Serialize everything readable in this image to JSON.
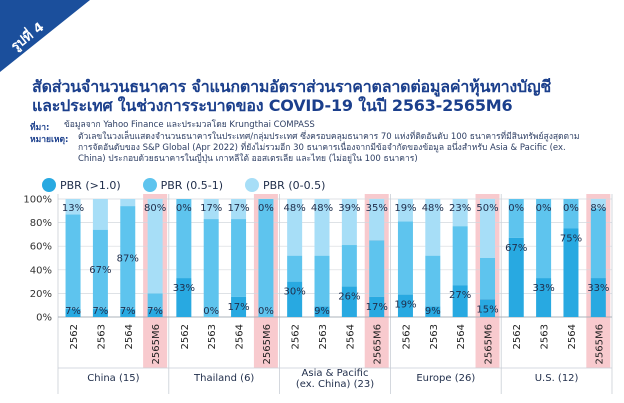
{
  "badge": {
    "label": "รูปที่ 4"
  },
  "header": {
    "title_line1": "สัดส่วนจำนวนธนาคาร จำแนกตามอัตราส่วนราคาตลาดต่อมูลค่าหุ้นทางบัญชี",
    "title_line2": "และประเทศ ในช่วงการระบาดของ COVID-19 ในปี 2563-2565M6",
    "source_key": "ที่มา:",
    "source_text": "ข้อมูลจาก Yahoo Finance และประมวลโดย Krungthai COMPASS",
    "note_key": "หมายเหตุ:",
    "note_line1": "ตัวเลขในวงเล็บแสดงจำนวนธนาคารในประเทศ/กลุ่มประเทศ ซึ่งครอบคลุมธนาคาร 70 แห่งที่ติดอันดับ 100 ธนาคารที่มีสินทรัพย์สูงสุดตาม",
    "note_line2": "การจัดอันดับของ S&P Global (Apr 2022) ที่ยังไม่รวมอีก 30 ธนาคารเนื่องจากมีข้อจำกัดของข้อมูล อนึ่งสำหรับ Asia & Pacific (ex.",
    "note_line3": "China) ประกอบด้วยธนาคารในญี่ปุ่น เกาหลีใต้ ออสเตรเลีย และไทย (ไม่อยู่ใน 100 ธนาคาร)"
  },
  "chart_data": {
    "type": "bar",
    "stacked": true,
    "ylim": [
      0,
      100
    ],
    "yticks": [
      "0%",
      "20%",
      "40%",
      "60%",
      "80%",
      "100%"
    ],
    "grid": true,
    "legend_position": "top-left",
    "legend": [
      {
        "label": "PBR (>1.0)",
        "color": "#28a9e1"
      },
      {
        "label": "PBR (0.5-1)",
        "color": "#5ec4ee"
      },
      {
        "label": "PBR (0-0.5)",
        "color": "#a7def7"
      }
    ],
    "highlight_color": "#f5b8be",
    "groups": [
      {
        "label": "China (15)",
        "label_lines": [
          "China (15)"
        ],
        "bars": [
          {
            "x": "2562",
            "values": [
              7,
              80,
              13
            ],
            "labels": [
              "7%",
              "",
              "13%"
            ],
            "highlight": false
          },
          {
            "x": "2563",
            "values": [
              7,
              67,
              26
            ],
            "labels": [
              "7%",
              "67%",
              ""
            ],
            "highlight": false
          },
          {
            "x": "2564",
            "values": [
              7,
              87,
              6
            ],
            "labels": [
              "7%",
              "87%",
              ""
            ],
            "highlight": false
          },
          {
            "x": "2565M6",
            "values": [
              7,
              13,
              80
            ],
            "labels": [
              "7%",
              "",
              "80%"
            ],
            "highlight": true
          }
        ]
      },
      {
        "label": "Thailand (6)",
        "label_lines": [
          "Thailand (6)"
        ],
        "bars": [
          {
            "x": "2562",
            "values": [
              33,
              67,
              0
            ],
            "labels": [
              "33%",
              "",
              "0%"
            ],
            "highlight": false
          },
          {
            "x": "2563",
            "values": [
              0,
              83,
              17
            ],
            "labels": [
              "0%",
              "",
              "17%"
            ],
            "highlight": false
          },
          {
            "x": "2564",
            "values": [
              17,
              66,
              17
            ],
            "labels": [
              "17%",
              "",
              "17%"
            ],
            "highlight": false
          },
          {
            "x": "2565M6",
            "values": [
              0,
              100,
              0
            ],
            "labels": [
              "0%",
              "",
              "0%"
            ],
            "highlight": true
          }
        ]
      },
      {
        "label": "Asia & Pacific (ex. China) (23)",
        "label_lines": [
          "Asia & Pacific",
          "(ex. China) (23)"
        ],
        "bars": [
          {
            "x": "2562",
            "values": [
              30,
              22,
              48
            ],
            "labels": [
              "30%",
              "",
              "48%"
            ],
            "highlight": false
          },
          {
            "x": "2563",
            "values": [
              9,
              43,
              48
            ],
            "labels": [
              "9%",
              "",
              "48%"
            ],
            "highlight": false
          },
          {
            "x": "2564",
            "values": [
              26,
              35,
              39
            ],
            "labels": [
              "26%",
              "",
              "39%"
            ],
            "highlight": false
          },
          {
            "x": "2565M6",
            "values": [
              17,
              48,
              35
            ],
            "labels": [
              "17%",
              "",
              "35%"
            ],
            "highlight": true
          }
        ]
      },
      {
        "label": "Europe (26)",
        "label_lines": [
          "Europe (26)"
        ],
        "bars": [
          {
            "x": "2562",
            "values": [
              19,
              62,
              19
            ],
            "labels": [
              "19%",
              "",
              "19%"
            ],
            "highlight": false
          },
          {
            "x": "2563",
            "values": [
              9,
              43,
              48
            ],
            "labels": [
              "9%",
              "",
              "48%"
            ],
            "highlight": false
          },
          {
            "x": "2564",
            "values": [
              27,
              50,
              23
            ],
            "labels": [
              "27%",
              "",
              "23%"
            ],
            "highlight": false
          },
          {
            "x": "2565M6",
            "values": [
              15,
              35,
              50
            ],
            "labels": [
              "15%",
              "",
              "50%"
            ],
            "highlight": true
          }
        ]
      },
      {
        "label": "U.S. (12)",
        "label_lines": [
          "U.S. (12)"
        ],
        "bars": [
          {
            "x": "2562",
            "values": [
              67,
              33,
              0
            ],
            "labels": [
              "67%",
              "",
              "0%"
            ],
            "highlight": false
          },
          {
            "x": "2563",
            "values": [
              33,
              67,
              0
            ],
            "labels": [
              "33%",
              "",
              "0%"
            ],
            "highlight": false
          },
          {
            "x": "2564",
            "values": [
              75,
              25,
              0
            ],
            "labels": [
              "75%",
              "",
              "0%"
            ],
            "highlight": false
          },
          {
            "x": "2565M6",
            "values": [
              33,
              59,
              8
            ],
            "labels": [
              "33%",
              "",
              "8%"
            ],
            "highlight": true
          }
        ]
      }
    ]
  }
}
